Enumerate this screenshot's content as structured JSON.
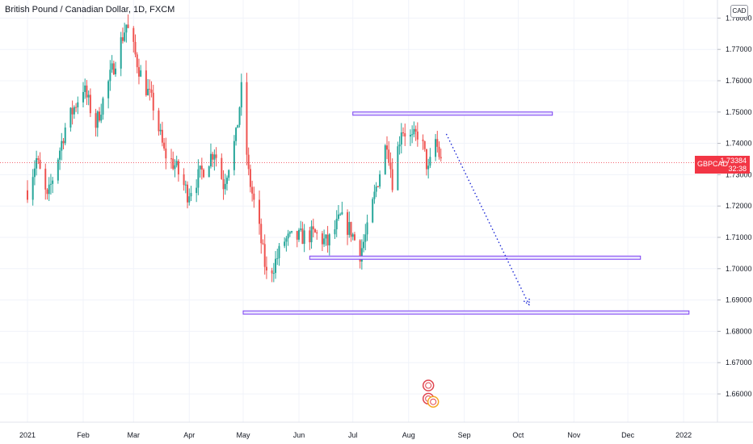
{
  "header": {
    "title": "British Pound / Canadian Dollar, 1D, FXCM",
    "currency": "CAD"
  },
  "price_tag": {
    "symbol": "GBPCAD",
    "value": "1.73384",
    "countdown": "32:38"
  },
  "colors": {
    "up": "#26a69a",
    "down": "#ef5350",
    "zone": "#7b3ff2",
    "projection": "#1e2ad6",
    "grid": "#f0f3fa",
    "axis_text": "#131722",
    "price_line": "#f23645"
  },
  "chart_data": {
    "type": "candlestick",
    "title": "British Pound / Canadian Dollar, 1D, FXCM",
    "y_axis": {
      "min": 1.655,
      "max": 1.785,
      "ticks": [
        "1.78000",
        "1.77000",
        "1.76000",
        "1.75000",
        "1.74000",
        "1.73000",
        "1.72000",
        "1.71000",
        "1.70000",
        "1.69000",
        "1.68000",
        "1.67000",
        "1.66000"
      ]
    },
    "x_axis": {
      "labels": [
        "2021",
        "Feb",
        "Mar",
        "Apr",
        "May",
        "Jun",
        "Jul",
        "Aug",
        "Sep",
        "Oct",
        "Nov",
        "Dec",
        "2022"
      ]
    },
    "last_price": 1.73384,
    "trend_path": [
      {
        "date": "2021-01-01",
        "price": 1.725
      },
      {
        "date": "2021-01-06",
        "price": 1.735
      },
      {
        "date": "2021-01-12",
        "price": 1.722
      },
      {
        "date": "2021-01-22",
        "price": 1.745
      },
      {
        "date": "2021-02-01",
        "price": 1.758
      },
      {
        "date": "2021-02-08",
        "price": 1.746
      },
      {
        "date": "2021-02-18",
        "price": 1.765
      },
      {
        "date": "2021-02-25",
        "price": 1.778
      },
      {
        "date": "2021-03-05",
        "price": 1.762
      },
      {
        "date": "2021-03-12",
        "price": 1.752
      },
      {
        "date": "2021-03-18",
        "price": 1.737
      },
      {
        "date": "2021-03-24",
        "price": 1.733
      },
      {
        "date": "2021-03-31",
        "price": 1.724
      },
      {
        "date": "2021-04-08",
        "price": 1.731
      },
      {
        "date": "2021-04-15",
        "price": 1.738
      },
      {
        "date": "2021-04-20",
        "price": 1.727
      },
      {
        "date": "2021-04-27",
        "price": 1.742
      },
      {
        "date": "2021-04-30",
        "price": 1.757
      },
      {
        "date": "2021-05-04",
        "price": 1.73
      },
      {
        "date": "2021-05-10",
        "price": 1.712
      },
      {
        "date": "2021-05-14",
        "price": 1.698
      },
      {
        "date": "2021-05-18",
        "price": 1.701
      },
      {
        "date": "2021-05-24",
        "price": 1.709
      },
      {
        "date": "2021-06-01",
        "price": 1.71
      },
      {
        "date": "2021-06-10",
        "price": 1.711
      },
      {
        "date": "2021-06-17",
        "price": 1.708
      },
      {
        "date": "2021-06-24",
        "price": 1.716
      },
      {
        "date": "2021-06-30",
        "price": 1.712
      },
      {
        "date": "2021-07-05",
        "price": 1.705
      },
      {
        "date": "2021-07-09",
        "price": 1.712
      },
      {
        "date": "2021-07-14",
        "price": 1.726
      },
      {
        "date": "2021-07-20",
        "price": 1.741
      },
      {
        "date": "2021-07-23",
        "price": 1.728
      },
      {
        "date": "2021-07-28",
        "price": 1.745
      },
      {
        "date": "2021-08-03",
        "price": 1.741
      },
      {
        "date": "2021-08-07",
        "price": 1.744
      },
      {
        "date": "2021-08-12",
        "price": 1.731
      },
      {
        "date": "2021-08-16",
        "price": 1.741
      },
      {
        "date": "2021-08-19",
        "price": 1.734
      }
    ],
    "zones": [
      {
        "from": "2021-07-01",
        "to": "2021-10-20",
        "price": 1.7495
      },
      {
        "from": "2021-06-07",
        "to": "2021-12-08",
        "price": 1.7035
      },
      {
        "from": "2021-05-01",
        "to": "2022-01-04",
        "price": 1.686
      }
    ],
    "projection": {
      "start": {
        "date": "2021-08-22",
        "price": 1.743
      },
      "end": {
        "date": "2021-10-07",
        "price": 1.6885
      }
    },
    "event_markers": {
      "date": "2021-08-12",
      "prices": [
        1.6627,
        1.6585,
        1.6575
      ]
    }
  }
}
